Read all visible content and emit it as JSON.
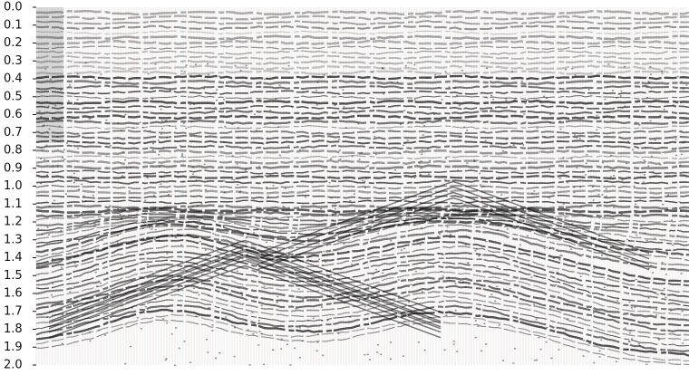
{
  "chart_data": {
    "type": "seismic",
    "ylim": [
      0,
      2
    ],
    "yticks": [
      {
        "value": 0,
        "label": "0.0"
      },
      0.1,
      0.2,
      0.3,
      0.4,
      0.5,
      0.6,
      0.7,
      0.8,
      0.9,
      {
        "value": 1,
        "label": "1.0"
      },
      1.1,
      1.2,
      1.3,
      1.4,
      1.5,
      1.6,
      1.7,
      1.8,
      1.9,
      {
        "value": 2,
        "label": "2.0"
      }
    ]
  }
}
